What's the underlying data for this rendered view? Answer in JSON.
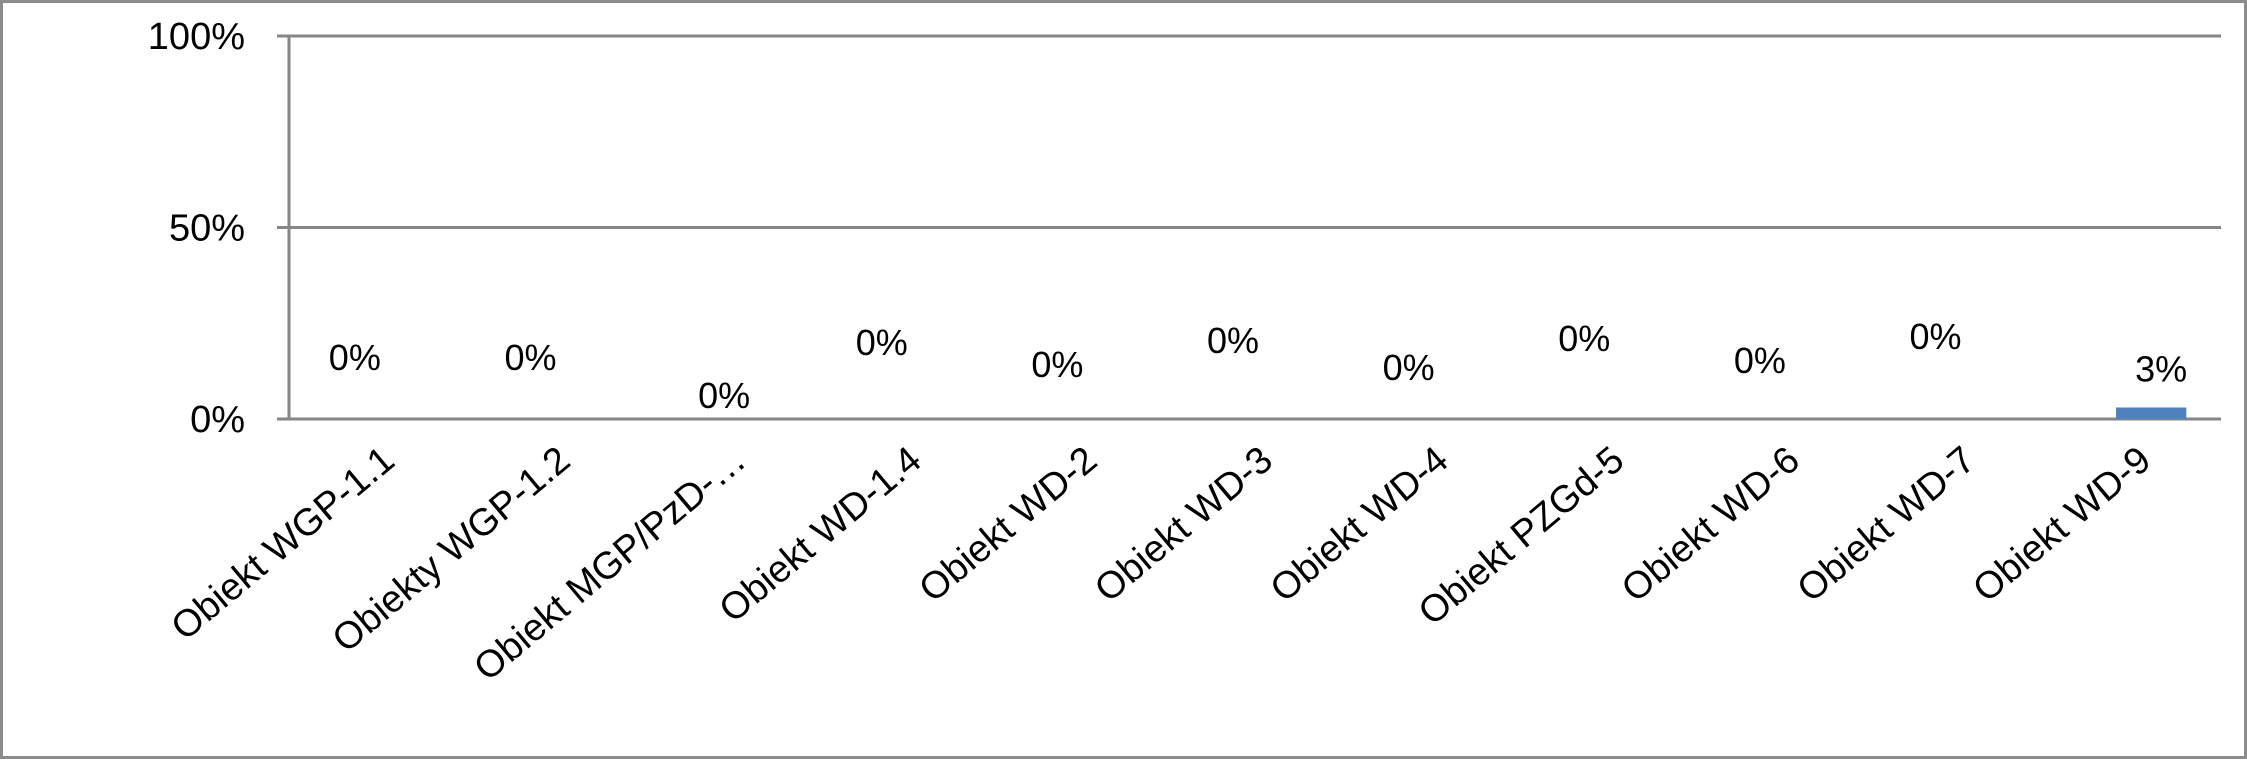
{
  "chart_data": {
    "type": "bar",
    "categories": [
      "Obiekt WGP-1.1",
      "Obiekty WGP-1.2",
      "Obiekt MGP/PzD-…",
      "Obiekt WD-1.4",
      "Obiekt WD-2",
      "Obiekt WD-3",
      "Obiekt WD-4",
      "Obiekt PZGd-5",
      "Obiekt WD-6",
      "Obiekt WD-7",
      "Obiekt WD-9"
    ],
    "values": [
      0,
      0,
      0,
      0,
      0,
      0,
      0,
      0,
      0,
      0,
      3
    ],
    "data_labels": [
      "0%",
      "0%",
      "0%",
      "0%",
      "0%",
      "0%",
      "0%",
      "0%",
      "0%",
      "0%",
      "3%"
    ],
    "ylim": [
      0,
      100
    ],
    "yticks": [
      0,
      50,
      100
    ],
    "ytick_labels": [
      "0%",
      "50%",
      "100%"
    ],
    "grid": true,
    "legend": "none",
    "bar_color": "#4f81bd",
    "axis_color": "#868686"
  }
}
